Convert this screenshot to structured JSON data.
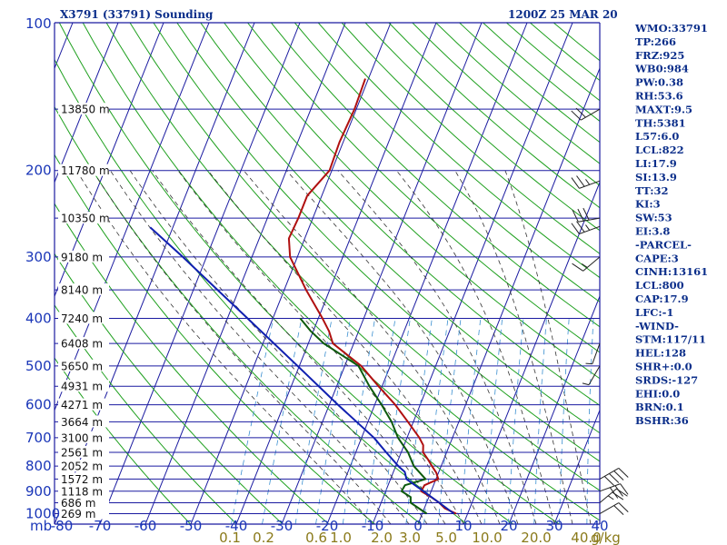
{
  "header": {
    "station": "X3791 (33791) Sounding",
    "time": "1200Z 25 MAR 20"
  },
  "colors": {
    "grid": "#1a1aa0",
    "isotherm": "#1a1aa0",
    "dry_adiabat": "#1fa01f",
    "moist_adiabat": "#333333",
    "mixing_ratio": "#3a8fd0",
    "temperature": "#b01010",
    "dewpoint": "#0d5a0d",
    "parcel": "#1020b0",
    "wind": "#222222",
    "labels": "#1a36b8",
    "mix_labels": "#8a7a1a"
  },
  "stats": [
    "WMO:33791",
    "TP:266",
    "FRZ:925",
    "WB0:984",
    "PW:0.38",
    "RH:53.6",
    "MAXT:9.5",
    "TH:5381",
    "L57:6.0",
    "LCL:822",
    "LI:17.9",
    "SI:13.9",
    "TT:32",
    "KI:3",
    "SW:53",
    "EI:3.8",
    "-PARCEL-",
    "CAPE:3",
    "CINH:13161",
    "LCL:800",
    "CAP:17.9",
    "LFC:-1",
    "-WIND-",
    "STM:117/11",
    "HEL:128",
    "SHR+:0.0",
    "SRDS:-127",
    "EHI:0.0",
    "BRN:0.1",
    "BSHR:36"
  ],
  "chart_data": {
    "type": "skew-t log-p",
    "title": "X3791 (33791) Sounding",
    "pressure_axis_label": "mb",
    "pressure_ticks": [
      "100",
      "200",
      "300",
      "400",
      "500",
      "600",
      "700",
      "800",
      "900",
      "1000"
    ],
    "pressure_range_hpa": [
      100,
      1050
    ],
    "temperature_axis_label": "",
    "temperature_ticks": [
      "-80",
      "-70",
      "-60",
      "-50",
      "-40",
      "-30",
      "-20",
      "-10",
      "0",
      "10",
      "20",
      "30",
      "40"
    ],
    "temperature_tick_values": [
      -80,
      -70,
      -60,
      -50,
      -40,
      -30,
      -20,
      -10,
      0,
      10,
      20,
      30,
      40
    ],
    "mixing_ratio_label": "g/kg",
    "mixing_ratio_ticks": [
      "0.1",
      "0.2",
      "0.6",
      "1.0",
      "2.0",
      "3.0",
      "5.0",
      "10.0",
      "20.0",
      "40.0"
    ],
    "height_labels": [
      {
        "p": 150,
        "text": "13850 m"
      },
      {
        "p": 200,
        "text": "11780 m"
      },
      {
        "p": 250,
        "text": "10350 m"
      },
      {
        "p": 300,
        "text": "9180 m"
      },
      {
        "p": 350,
        "text": "8140 m"
      },
      {
        "p": 400,
        "text": "7240 m"
      },
      {
        "p": 450,
        "text": "6408 m"
      },
      {
        "p": 500,
        "text": "5650 m"
      },
      {
        "p": 550,
        "text": "4931 m"
      },
      {
        "p": 600,
        "text": "4271 m"
      },
      {
        "p": 650,
        "text": "3664 m"
      },
      {
        "p": 700,
        "text": "3100 m"
      },
      {
        "p": 750,
        "text": "2561 m"
      },
      {
        "p": 800,
        "text": "2052 m"
      },
      {
        "p": 850,
        "text": "1572 m"
      },
      {
        "p": 900,
        "text": "1118 m"
      },
      {
        "p": 950,
        "text": "686 m"
      },
      {
        "p": 1000,
        "text": "269 m"
      }
    ],
    "series": [
      {
        "name": "temperature",
        "points": [
          {
            "p": 1000,
            "t": 7.5
          },
          {
            "p": 975,
            "t": 4.5
          },
          {
            "p": 950,
            "t": 2.8
          },
          {
            "p": 925,
            "t": 0.5
          },
          {
            "p": 900,
            "t": -2.2
          },
          {
            "p": 875,
            "t": -2.0
          },
          {
            "p": 850,
            "t": 0.5
          },
          {
            "p": 825,
            "t": -0.5
          },
          {
            "p": 800,
            "t": -2.0
          },
          {
            "p": 775,
            "t": -3.5
          },
          {
            "p": 750,
            "t": -5.2
          },
          {
            "p": 725,
            "t": -5.8
          },
          {
            "p": 700,
            "t": -7.3
          },
          {
            "p": 650,
            "t": -11.2
          },
          {
            "p": 600,
            "t": -15.5
          },
          {
            "p": 550,
            "t": -20.8
          },
          {
            "p": 500,
            "t": -26.4
          },
          {
            "p": 450,
            "t": -34.6
          },
          {
            "p": 425,
            "t": -36.5
          },
          {
            "p": 400,
            "t": -39.1
          },
          {
            "p": 350,
            "t": -45.2
          },
          {
            "p": 300,
            "t": -51.6
          },
          {
            "p": 275,
            "t": -53.5
          },
          {
            "p": 250,
            "t": -53.2
          },
          {
            "p": 225,
            "t": -53.2
          },
          {
            "p": 200,
            "t": -50.5
          },
          {
            "p": 175,
            "t": -50.8
          },
          {
            "p": 150,
            "t": -50.4
          },
          {
            "p": 130,
            "t": -50.7
          }
        ]
      },
      {
        "name": "dewpoint",
        "points": [
          {
            "p": 1000,
            "t": 1.0
          },
          {
            "p": 950,
            "t": -3.5
          },
          {
            "p": 925,
            "t": -4.0
          },
          {
            "p": 900,
            "t": -6.5
          },
          {
            "p": 875,
            "t": -6.3
          },
          {
            "p": 850,
            "t": -2.3
          },
          {
            "p": 800,
            "t": -6.0
          },
          {
            "p": 750,
            "t": -8.5
          },
          {
            "p": 700,
            "t": -12.0
          },
          {
            "p": 650,
            "t": -14.8
          },
          {
            "p": 600,
            "t": -18.5
          },
          {
            "p": 550,
            "t": -22.8
          },
          {
            "p": 500,
            "t": -27.0
          },
          {
            "p": 450,
            "t": -36.6
          },
          {
            "p": 425,
            "t": -40.5
          },
          {
            "p": 400,
            "t": -44.0
          }
        ]
      },
      {
        "name": "parcel",
        "points": [
          {
            "p": 1000,
            "t": 7.0
          },
          {
            "p": 950,
            "t": 2.8
          },
          {
            "p": 900,
            "t": -1.7
          },
          {
            "p": 850,
            "t": -6.5
          },
          {
            "p": 822,
            "t": -7.5
          },
          {
            "p": 800,
            "t": -9.4
          },
          {
            "p": 750,
            "t": -13.3
          },
          {
            "p": 700,
            "t": -17.3
          },
          {
            "p": 600,
            "t": -28.1
          },
          {
            "p": 500,
            "t": -40.4
          },
          {
            "p": 400,
            "t": -55.6
          },
          {
            "p": 300,
            "t": -75.2
          },
          {
            "p": 261,
            "t": -85.0
          }
        ]
      }
    ],
    "wind_barbs": [
      {
        "p": 150,
        "dir": 240,
        "kt": 20
      },
      {
        "p": 210,
        "dir": 250,
        "kt": 25
      },
      {
        "p": 250,
        "dir": 260,
        "kt": 30
      },
      {
        "p": 260,
        "dir": 250,
        "kt": 25
      },
      {
        "p": 300,
        "dir": 230,
        "kt": 15
      },
      {
        "p": 450,
        "dir": 200,
        "kt": 5
      },
      {
        "p": 500,
        "dir": 210,
        "kt": 5
      },
      {
        "p": 850,
        "dir": 60,
        "kt": 40
      },
      {
        "p": 900,
        "dir": 70,
        "kt": 30
      },
      {
        "p": 950,
        "dir": 50,
        "kt": 25
      },
      {
        "p": 1000,
        "dir": 60,
        "kt": 20
      }
    ]
  }
}
